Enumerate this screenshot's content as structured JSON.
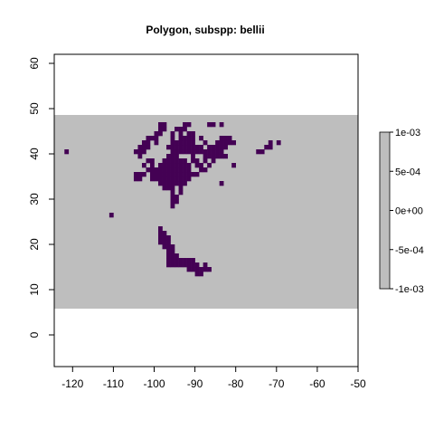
{
  "chart_data": {
    "type": "heatmap",
    "title": "Polygon, subspp: bellii",
    "xlabel": "",
    "ylabel": "",
    "xlim": [
      -124.5,
      -50
    ],
    "ylim": [
      -7,
      62
    ],
    "x_ticks": [
      -120,
      -110,
      -100,
      -90,
      -80,
      -70,
      -60,
      -50
    ],
    "y_ticks": [
      0,
      10,
      20,
      30,
      40,
      50,
      60
    ],
    "grid": false,
    "background_raster": {
      "x_range": [
        -124.5,
        -50
      ],
      "y_range": [
        5.8,
        48.6
      ],
      "value": 0,
      "color": "#bebebe"
    },
    "cell_size_deg": 1,
    "presence_color": "#440154",
    "presence_cells": [
      [
        -99,
        46
      ],
      [
        -98,
        46
      ],
      [
        -93,
        46
      ],
      [
        -92,
        46
      ],
      [
        -87,
        46
      ],
      [
        -86,
        46
      ],
      [
        -84,
        46
      ],
      [
        -99,
        45
      ],
      [
        -98,
        45
      ],
      [
        -95,
        45
      ],
      [
        -94,
        45
      ],
      [
        -93,
        45
      ],
      [
        -100,
        44
      ],
      [
        -99,
        44
      ],
      [
        -96,
        44
      ],
      [
        -94,
        44
      ],
      [
        -92,
        44
      ],
      [
        -91,
        44
      ],
      [
        -102,
        43
      ],
      [
        -101,
        43
      ],
      [
        -100,
        43
      ],
      [
        -96,
        43
      ],
      [
        -94,
        43
      ],
      [
        -93,
        43
      ],
      [
        -92,
        43
      ],
      [
        -91,
        43
      ],
      [
        -89,
        43
      ],
      [
        -84,
        43
      ],
      [
        -83,
        43
      ],
      [
        -82,
        43
      ],
      [
        -103,
        42
      ],
      [
        -102,
        42
      ],
      [
        -100,
        42
      ],
      [
        -96,
        42
      ],
      [
        -95,
        42
      ],
      [
        -94,
        42
      ],
      [
        -93,
        42
      ],
      [
        -92,
        42
      ],
      [
        -91,
        42
      ],
      [
        -88,
        42
      ],
      [
        -85,
        42
      ],
      [
        -84,
        42
      ],
      [
        -83,
        42
      ],
      [
        -82,
        42
      ],
      [
        -81,
        42
      ],
      [
        -72,
        42
      ],
      [
        -70,
        42
      ],
      [
        -104,
        41
      ],
      [
        -103,
        41
      ],
      [
        -102,
        41
      ],
      [
        -97,
        41
      ],
      [
        -96,
        41
      ],
      [
        -95,
        41
      ],
      [
        -94,
        41
      ],
      [
        -93,
        41
      ],
      [
        -92,
        41
      ],
      [
        -91,
        41
      ],
      [
        -90,
        41
      ],
      [
        -89,
        41
      ],
      [
        -87,
        41
      ],
      [
        -86,
        41
      ],
      [
        -85,
        41
      ],
      [
        -84,
        41
      ],
      [
        -83,
        41
      ],
      [
        -73,
        41
      ],
      [
        -72,
        41
      ],
      [
        -122,
        40
      ],
      [
        -105,
        40
      ],
      [
        -104,
        40
      ],
      [
        -103,
        40
      ],
      [
        -96,
        40
      ],
      [
        -95,
        40
      ],
      [
        -94,
        40
      ],
      [
        -93,
        40
      ],
      [
        -92,
        40
      ],
      [
        -91,
        40
      ],
      [
        -90,
        40
      ],
      [
        -89,
        40
      ],
      [
        -88,
        40
      ],
      [
        -87,
        40
      ],
      [
        -86,
        40
      ],
      [
        -85,
        40
      ],
      [
        -84,
        40
      ],
      [
        -75,
        40
      ],
      [
        -74,
        40
      ],
      [
        -104,
        39
      ],
      [
        -97,
        39
      ],
      [
        -96,
        39
      ],
      [
        -95,
        39
      ],
      [
        -91,
        39
      ],
      [
        -88,
        39
      ],
      [
        -87,
        39
      ],
      [
        -86,
        39
      ],
      [
        -85,
        39
      ],
      [
        -84,
        39
      ],
      [
        -83,
        39
      ],
      [
        -102,
        38
      ],
      [
        -101,
        38
      ],
      [
        -98,
        38
      ],
      [
        -97,
        38
      ],
      [
        -96,
        38
      ],
      [
        -95,
        38
      ],
      [
        -94,
        38
      ],
      [
        -93,
        38
      ],
      [
        -91,
        38
      ],
      [
        -90,
        38
      ],
      [
        -88,
        38
      ],
      [
        -86,
        38
      ],
      [
        -103,
        37
      ],
      [
        -101,
        37
      ],
      [
        -99,
        37
      ],
      [
        -98,
        37
      ],
      [
        -97,
        37
      ],
      [
        -96,
        37
      ],
      [
        -95,
        37
      ],
      [
        -94,
        37
      ],
      [
        -93,
        37
      ],
      [
        -92,
        37
      ],
      [
        -90,
        37
      ],
      [
        -89,
        37
      ],
      [
        -87,
        37
      ],
      [
        -81,
        37
      ],
      [
        -102,
        36
      ],
      [
        -101,
        36
      ],
      [
        -100,
        36
      ],
      [
        -99,
        36
      ],
      [
        -98,
        36
      ],
      [
        -97,
        36
      ],
      [
        -96,
        36
      ],
      [
        -95,
        36
      ],
      [
        -94,
        36
      ],
      [
        -93,
        36
      ],
      [
        -92,
        36
      ],
      [
        -89,
        36
      ],
      [
        -88,
        36
      ],
      [
        -105,
        35
      ],
      [
        -104,
        35
      ],
      [
        -103,
        35
      ],
      [
        -101,
        35
      ],
      [
        -100,
        35
      ],
      [
        -99,
        35
      ],
      [
        -98,
        35
      ],
      [
        -97,
        35
      ],
      [
        -96,
        35
      ],
      [
        -95,
        35
      ],
      [
        -94,
        35
      ],
      [
        -93,
        35
      ],
      [
        -92,
        35
      ],
      [
        -91,
        35
      ],
      [
        -90,
        35
      ],
      [
        -105,
        34
      ],
      [
        -104,
        34
      ],
      [
        -101,
        34
      ],
      [
        -100,
        34
      ],
      [
        -99,
        34
      ],
      [
        -98,
        34
      ],
      [
        -97,
        34
      ],
      [
        -96,
        34
      ],
      [
        -95,
        34
      ],
      [
        -94,
        34
      ],
      [
        -93,
        34
      ],
      [
        -92,
        34
      ],
      [
        -99,
        33
      ],
      [
        -98,
        33
      ],
      [
        -97,
        33
      ],
      [
        -96,
        33
      ],
      [
        -95,
        33
      ],
      [
        -94,
        33
      ],
      [
        -93,
        33
      ],
      [
        -84,
        33
      ],
      [
        -98,
        32
      ],
      [
        -97,
        32
      ],
      [
        -96,
        32
      ],
      [
        -94,
        32
      ],
      [
        -96,
        31
      ],
      [
        -94,
        31
      ],
      [
        -96,
        30
      ],
      [
        -95,
        30
      ],
      [
        -96,
        29
      ],
      [
        -95,
        29
      ],
      [
        -96,
        28
      ],
      [
        -111,
        26
      ],
      [
        -99,
        23
      ],
      [
        -99,
        22
      ],
      [
        -98,
        22
      ],
      [
        -99,
        21
      ],
      [
        -98,
        21
      ],
      [
        -97,
        21
      ],
      [
        -99,
        20
      ],
      [
        -98,
        20
      ],
      [
        -97,
        20
      ],
      [
        -98,
        19
      ],
      [
        -97,
        19
      ],
      [
        -96,
        19
      ],
      [
        -97,
        18
      ],
      [
        -96,
        18
      ],
      [
        -97,
        17
      ],
      [
        -96,
        17
      ],
      [
        -95,
        17
      ],
      [
        -97,
        16
      ],
      [
        -96,
        16
      ],
      [
        -95,
        16
      ],
      [
        -94,
        16
      ],
      [
        -93,
        16
      ],
      [
        -92,
        16
      ],
      [
        -91,
        16
      ],
      [
        -97,
        15
      ],
      [
        -96,
        15
      ],
      [
        -95,
        15
      ],
      [
        -94,
        15
      ],
      [
        -93,
        15
      ],
      [
        -92,
        15
      ],
      [
        -91,
        15
      ],
      [
        -90,
        15
      ],
      [
        -88,
        15
      ],
      [
        -92,
        14
      ],
      [
        -91,
        14
      ],
      [
        -90,
        14
      ],
      [
        -89,
        14
      ],
      [
        -88,
        14
      ],
      [
        -87,
        14
      ],
      [
        -90,
        13
      ],
      [
        -89,
        13
      ]
    ],
    "legend": {
      "placement": "right",
      "labels": [
        "1e-03",
        "5e-04",
        "0e+00",
        "-5e-04",
        "-1e-03"
      ],
      "values": [
        0.001,
        0.0005,
        0,
        -0.0005,
        -0.001
      ],
      "color": "#bebebe"
    }
  }
}
